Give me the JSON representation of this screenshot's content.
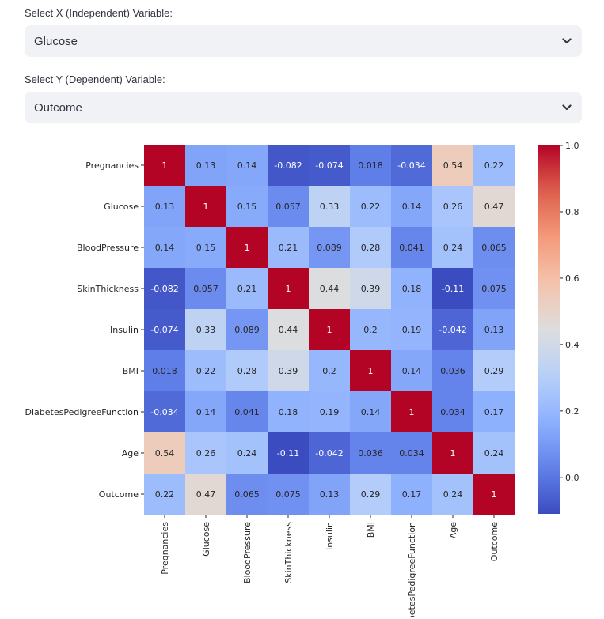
{
  "x_select": {
    "label": "Select X (Independent) Variable:",
    "value": "Glucose",
    "icon": "chevron-down-icon"
  },
  "y_select": {
    "label": "Select Y (Dependent) Variable:",
    "value": "Outcome",
    "icon": "chevron-down-icon"
  },
  "chart_data": {
    "type": "heatmap",
    "colormap": "coolwarm",
    "categories": [
      "Pregnancies",
      "Glucose",
      "BloodPressure",
      "SkinThickness",
      "Insulin",
      "BMI",
      "DiabetesPedigreeFunction",
      "Age",
      "Outcome"
    ],
    "values": [
      [
        1,
        0.13,
        0.14,
        -0.082,
        -0.074,
        0.018,
        -0.034,
        0.54,
        0.22
      ],
      [
        0.13,
        1,
        0.15,
        0.057,
        0.33,
        0.22,
        0.14,
        0.26,
        0.47
      ],
      [
        0.14,
        0.15,
        1,
        0.21,
        0.089,
        0.28,
        0.041,
        0.24,
        0.065
      ],
      [
        -0.082,
        0.057,
        0.21,
        1,
        0.44,
        0.39,
        0.18,
        -0.11,
        0.075
      ],
      [
        -0.074,
        0.33,
        0.089,
        0.44,
        1,
        0.2,
        0.19,
        -0.042,
        0.13
      ],
      [
        0.018,
        0.22,
        0.28,
        0.39,
        0.2,
        1,
        0.14,
        0.036,
        0.29
      ],
      [
        -0.034,
        0.14,
        0.041,
        0.18,
        0.19,
        0.14,
        1,
        0.034,
        0.17
      ],
      [
        0.54,
        0.26,
        0.24,
        -0.11,
        -0.042,
        0.036,
        0.034,
        1,
        0.24
      ],
      [
        0.22,
        0.47,
        0.065,
        0.075,
        0.13,
        0.29,
        0.17,
        0.24,
        1
      ]
    ],
    "x_tick_labels": [
      "Pregnancies",
      "Glucose",
      "BloodPressure",
      "SkinThickness",
      "Insulin",
      "BMI",
      "abetesPedigreeFunction",
      "Age",
      "Outcome"
    ],
    "colorbar": {
      "range": [
        -0.11,
        1.0
      ],
      "ticks": [
        0.0,
        0.2,
        0.4,
        0.6,
        0.8,
        1.0
      ],
      "tick_labels": [
        "0.0",
        "0.2",
        "0.4",
        "0.6",
        "0.8",
        "1.0"
      ]
    },
    "annotations": true,
    "title": "",
    "xlabel": "",
    "ylabel": ""
  }
}
